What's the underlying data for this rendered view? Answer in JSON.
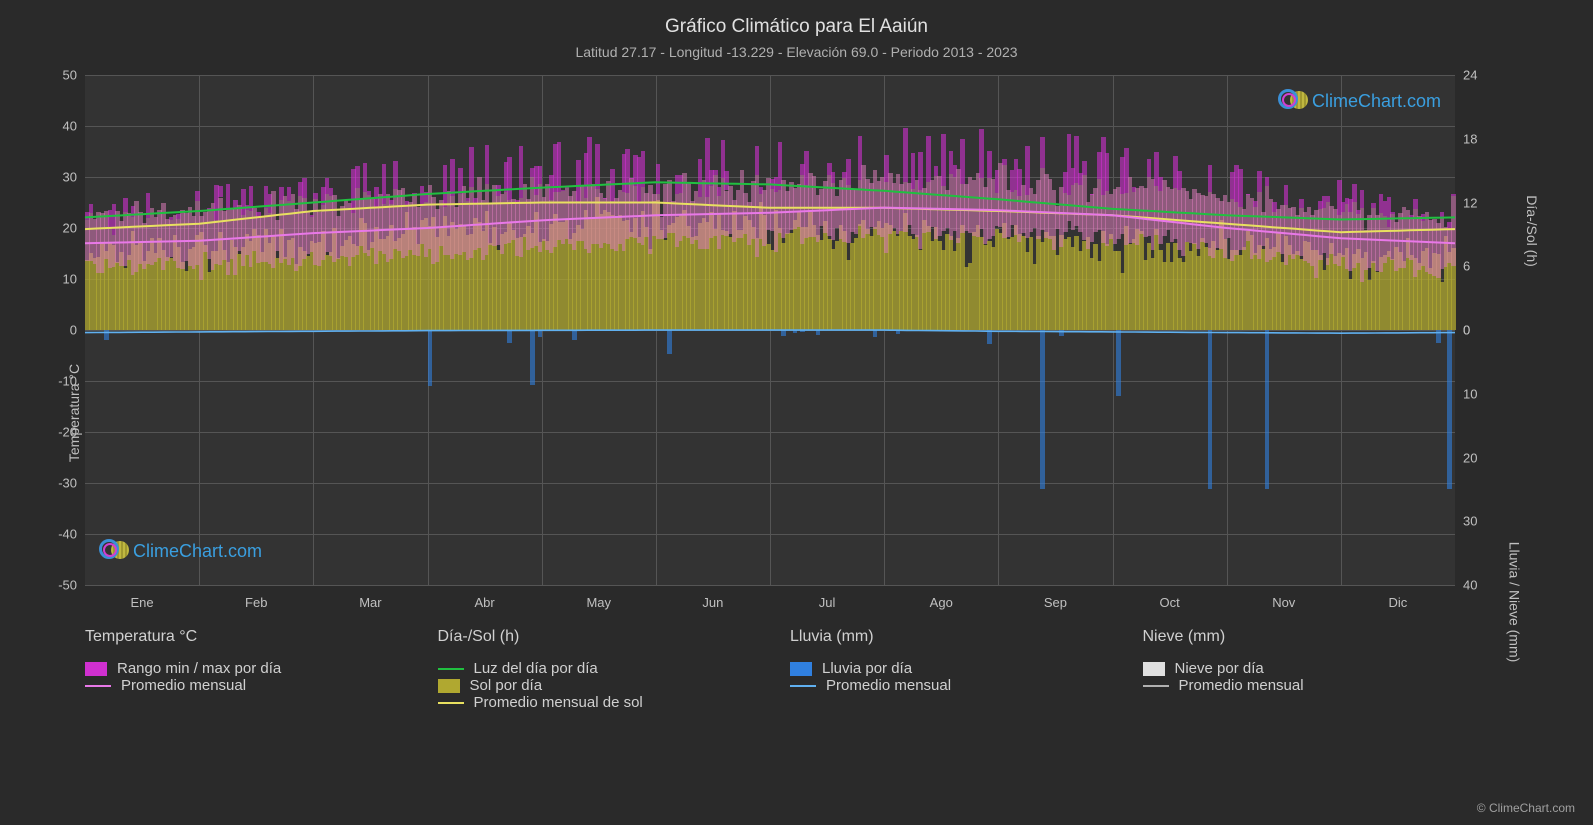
{
  "title": "Gráfico Climático para El Aaiún",
  "subtitle": "Latitud 27.17 - Longitud -13.229 - Elevación 69.0 - Periodo 2013 - 2023",
  "watermark_text": "ClimeChart.com",
  "copyright": "© ClimeChart.com",
  "axes": {
    "y_left_label": "Temperatura °C",
    "y_right_top_label": "Día-/Sol (h)",
    "y_right_bottom_label": "Lluvia / Nieve (mm)",
    "y_left_min": -50,
    "y_left_max": 50,
    "y_left_ticks": [
      -50,
      -40,
      -30,
      -20,
      -10,
      0,
      10,
      20,
      30,
      40,
      50
    ],
    "y_right_top_ticks": [
      0,
      6,
      12,
      18,
      24
    ],
    "y_right_bottom_ticks": [
      0,
      10,
      20,
      30,
      40
    ],
    "x_months": [
      "Ene",
      "Feb",
      "Mar",
      "Abr",
      "May",
      "Jun",
      "Jul",
      "Ago",
      "Sep",
      "Oct",
      "Nov",
      "Dic"
    ]
  },
  "colors": {
    "background": "#2a2a2a",
    "plot_bg": "#333333",
    "grid": "#555555",
    "temp_range_fill": "#d030d0",
    "temp_range_fill_light": "#d87ab8",
    "temp_avg_line": "#e878e8",
    "daylight_line": "#20c040",
    "sun_fill": "#b0a830",
    "sun_avg_line": "#e8e060",
    "rain_fill": "#3080e0",
    "rain_avg_line": "#60b0f0",
    "snow_fill": "#e0e0e0",
    "snow_avg_line": "#b0b0b0",
    "text": "#d0d0d0"
  },
  "legend": {
    "col1_header": "Temperatura °C",
    "col1_items": [
      {
        "type": "swatch",
        "color": "#d030d0",
        "label": "Rango min / max por día"
      },
      {
        "type": "line",
        "color": "#e878e8",
        "label": "Promedio mensual"
      }
    ],
    "col2_header": "Día-/Sol (h)",
    "col2_items": [
      {
        "type": "line",
        "color": "#20c040",
        "label": "Luz del día por día"
      },
      {
        "type": "swatch",
        "color": "#b0a830",
        "label": "Sol por día"
      },
      {
        "type": "line",
        "color": "#e8e060",
        "label": "Promedio mensual de sol"
      }
    ],
    "col3_header": "Lluvia (mm)",
    "col3_items": [
      {
        "type": "swatch",
        "color": "#3080e0",
        "label": "Lluvia por día"
      },
      {
        "type": "line",
        "color": "#60b0f0",
        "label": "Promedio mensual"
      }
    ],
    "col4_header": "Nieve (mm)",
    "col4_items": [
      {
        "type": "swatch",
        "color": "#e0e0e0",
        "label": "Nieve por día"
      },
      {
        "type": "line",
        "color": "#b0b0b0",
        "label": "Promedio mensual"
      }
    ]
  },
  "series": {
    "temp_min_monthly": [
      12,
      13,
      14,
      15,
      16,
      17,
      18,
      19,
      19,
      18,
      15,
      13
    ],
    "temp_max_monthly": [
      22,
      23,
      25,
      26,
      27,
      28,
      28,
      29,
      29,
      28,
      26,
      23
    ],
    "temp_peak_monthly": [
      27,
      28,
      33,
      36,
      38,
      38,
      38,
      40,
      40,
      38,
      34,
      30
    ],
    "temp_avg_monthly": [
      17,
      17.5,
      19,
      20,
      21.5,
      22.5,
      23,
      24,
      23.5,
      22.5,
      20,
      18
    ],
    "daylight_h": [
      10.6,
      11.2,
      12.0,
      12.8,
      13.4,
      13.9,
      13.7,
      13.1,
      12.3,
      11.4,
      10.8,
      10.4
    ],
    "sun_h_monthly": [
      7.5,
      8.0,
      8.5,
      9.5,
      10.0,
      10.0,
      9.5,
      9.0,
      8.5,
      8.0,
      7.5,
      7.0
    ],
    "sun_avg_line": [
      9.5,
      10.0,
      11.2,
      11.8,
      12.0,
      12.0,
      11.5,
      11.5,
      11.2,
      10.8,
      10.0,
      9.2
    ],
    "rain_mm_monthly": [
      0.4,
      0.3,
      0.2,
      0.1,
      0.05,
      0.02,
      0.01,
      0.02,
      0.2,
      0.3,
      0.4,
      0.5
    ]
  }
}
